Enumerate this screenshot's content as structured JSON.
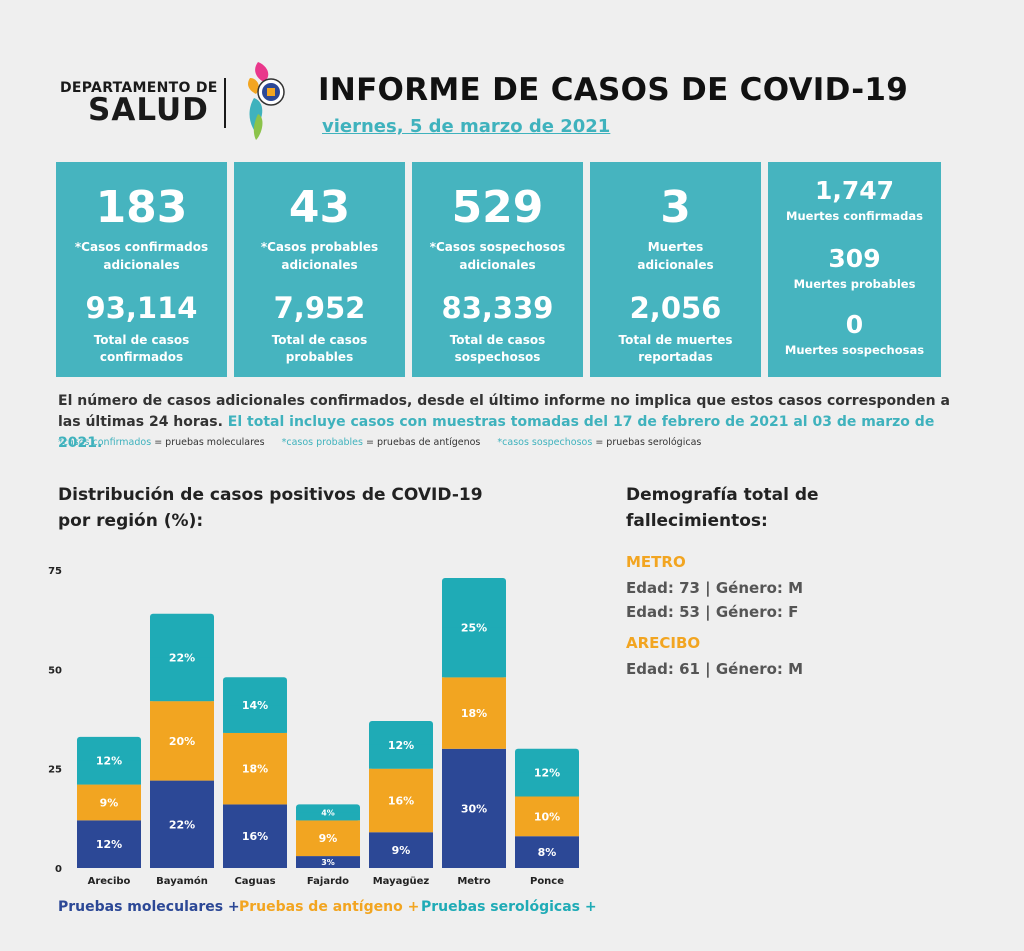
{
  "header": {
    "dept_line1": "DEPARTAMENTO DE",
    "dept_line2": "SALUD",
    "title": "INFORME DE CASOS DE COVID-19",
    "date": "viernes, 5 de marzo de 2021"
  },
  "stats": [
    {
      "big": "183",
      "label1": "*Casos confirmados",
      "label2": "adicionales",
      "total": "93,114",
      "tlabel1": "Total de casos",
      "tlabel2": "confirmados"
    },
    {
      "big": "43",
      "label1": "*Casos probables",
      "label2": "adicionales",
      "total": "7,952",
      "tlabel1": "Total de casos",
      "tlabel2": "probables"
    },
    {
      "big": "529",
      "label1": "*Casos sospechosos",
      "label2": "adicionales",
      "total": "83,339",
      "tlabel1": "Total de casos",
      "tlabel2": "sospechosos"
    },
    {
      "big": "3",
      "label1": "Muertes",
      "label2": "adicionales",
      "total": "2,056",
      "tlabel1": "Total de muertes",
      "tlabel2": "reportadas"
    }
  ],
  "deaths_box": [
    {
      "value": "1,747",
      "label": "Muertes confirmadas"
    },
    {
      "value": "309",
      "label": "Muertes probables"
    },
    {
      "value": "0",
      "label": "Muertes sospechosas"
    }
  ],
  "note": {
    "text": "El número de casos adicionales confirmados, desde el último informe no implica que estos casos corresponden a las últimas 24 horas.",
    "highlight": "El total incluye casos con muestras tomadas del 17 de febrero de 2021 al 03 de marzo de 2021."
  },
  "legend_note": [
    {
      "term": "*casos confirmados",
      "def": " = pruebas moleculares"
    },
    {
      "term": "*casos probables",
      "def": " = pruebas de antígenos"
    },
    {
      "term": "*casos sospechosos",
      "def": " = pruebas serológicas"
    }
  ],
  "chart_title": [
    "Distribución de casos positivos de COVID-19",
    "por región (%):"
  ],
  "chart_data": {
    "type": "bar",
    "stacked": true,
    "title": "Distribución de casos positivos de COVID-19 por región (%):",
    "categories": [
      "Arecibo",
      "Bayamón",
      "Caguas",
      "Fajardo",
      "Mayagüez",
      "Metro",
      "Ponce"
    ],
    "series": [
      {
        "name": "Pruebas moleculares +",
        "color": "#2c4896",
        "values": [
          12,
          22,
          16,
          3,
          9,
          30,
          8
        ],
        "labels": [
          "12%",
          "22%",
          "16%",
          "3%",
          "9%",
          "30%",
          "8%"
        ]
      },
      {
        "name": "Pruebas de antígeno +",
        "color": "#f2a521",
        "values": [
          9,
          20,
          18,
          9,
          16,
          18,
          10
        ],
        "labels": [
          "9%",
          "20%",
          "18%",
          "9%",
          "16%",
          "18%",
          "10%"
        ]
      },
      {
        "name": "Pruebas serológicas +",
        "color": "#1fabb6",
        "values": [
          12,
          22,
          14,
          4,
          12,
          25,
          12
        ],
        "labels": [
          "12%",
          "22%",
          "14%",
          "4%",
          "12%",
          "25%",
          "12%"
        ]
      }
    ],
    "yticks": [
      "0",
      "25",
      "50",
      "75"
    ],
    "ylim": [
      0,
      75
    ],
    "xlabel": "",
    "ylabel": ""
  },
  "demographics": {
    "title": [
      "Demografía total de",
      "fallecimientos:"
    ],
    "groups": [
      {
        "region": "METRO",
        "entries": [
          "Edad: 73 | Género: M",
          "Edad: 53 | Género: F"
        ]
      },
      {
        "region": "ARECIBO",
        "entries": [
          "Edad: 61 | Género: M"
        ]
      }
    ]
  },
  "colors": {
    "teal": "#46b4bf",
    "blue": "#2c4896",
    "orange": "#f2a521"
  }
}
